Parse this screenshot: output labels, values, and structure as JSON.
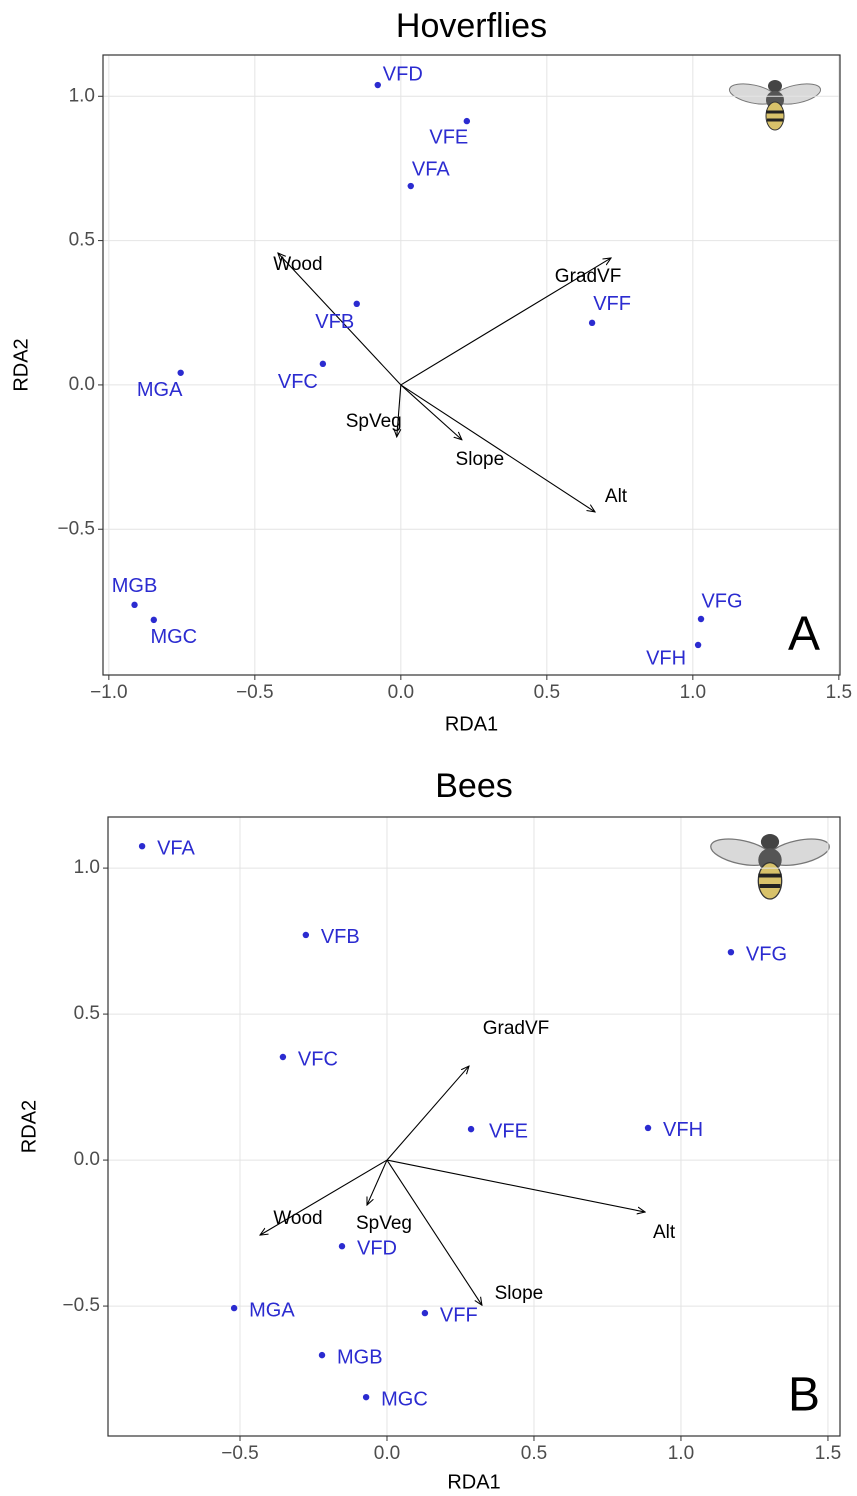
{
  "chart_data": [
    {
      "type": "scatter",
      "title": "Hoverflies",
      "panel_label": "A",
      "x_label": "RDA1",
      "y_label": "RDA2",
      "xlim": [
        -1.02,
        1.504
      ],
      "ylim": [
        -1.005,
        1.143
      ],
      "xticks": [
        {
          "value": -1,
          "label": "−1.0"
        },
        {
          "value": -0.5,
          "label": "−0.5"
        },
        {
          "value": 0,
          "label": "0.0"
        },
        0.5,
        {
          "value": 1,
          "label": "1.0"
        },
        1.5
      ],
      "yticks": [
        {
          "value": -0.5,
          "label": "−0.5"
        },
        {
          "value": 0,
          "label": "0.0"
        },
        0.5,
        {
          "value": 1,
          "label": "1.0"
        }
      ],
      "grid": true,
      "points": {
        "color": "#2b2bd0",
        "labels": [
          "VFD",
          "VFE",
          "VFA",
          "VFB",
          "VFF",
          "VFC",
          "MGA",
          "MGB",
          "MGC",
          "VFG",
          "VFH"
        ],
        "x": [
          -0.079,
          0.226,
          0.034,
          -0.151,
          0.655,
          -0.267,
          -0.754,
          -0.912,
          -0.846,
          1.028,
          1.018
        ],
        "y": [
          1.039,
          0.914,
          0.689,
          0.281,
          0.215,
          0.073,
          0.042,
          -0.762,
          -0.814,
          -0.811,
          -0.901
        ]
      },
      "arrows": {
        "color": "#000000",
        "labels": [
          "Wood",
          "GradVF",
          "SpVeg",
          "Slope",
          "Alt"
        ],
        "x": [
          -0.421,
          0.72,
          -0.014,
          0.209,
          0.665
        ],
        "y": [
          0.457,
          0.44,
          -0.18,
          -0.19,
          -0.44
        ]
      }
    },
    {
      "type": "scatter",
      "title": "Bees",
      "panel_label": "B",
      "x_label": "RDA1",
      "y_label": "RDA2",
      "xlim": [
        -0.949,
        1.541
      ],
      "ylim": [
        -0.945,
        1.175
      ],
      "xticks": [
        {
          "value": -0.5,
          "label": "−0.5"
        },
        {
          "value": 0,
          "label": "0.0"
        },
        0.5,
        {
          "value": 1,
          "label": "1.0"
        },
        1.5
      ],
      "yticks": [
        {
          "value": -0.5,
          "label": "−0.5"
        },
        {
          "value": 0,
          "label": "0.0"
        },
        0.5,
        {
          "value": 1,
          "label": "1.0"
        }
      ],
      "grid": true,
      "points": {
        "color": "#2b2bd0",
        "labels": [
          "VFA",
          "VFB",
          "VFG",
          "VFC",
          "VFE",
          "VFH",
          "VFD",
          "MGA",
          "VFF",
          "MGB",
          "MGC"
        ],
        "x": [
          -0.833,
          -0.276,
          1.17,
          -0.354,
          0.286,
          0.888,
          -0.153,
          -0.52,
          0.129,
          -0.221,
          -0.071
        ],
        "y": [
          1.075,
          0.771,
          0.712,
          0.353,
          0.106,
          0.11,
          -0.295,
          -0.507,
          -0.524,
          -0.668,
          -0.812
        ]
      },
      "arrows": {
        "color": "#000000",
        "labels": [
          "GradVF",
          "Alt",
          "Wood",
          "SpVeg",
          "Slope"
        ],
        "x": [
          0.279,
          0.878,
          -0.432,
          -0.068,
          0.323
        ],
        "y": [
          0.322,
          -0.178,
          -0.257,
          -0.154,
          -0.497
        ]
      }
    }
  ]
}
